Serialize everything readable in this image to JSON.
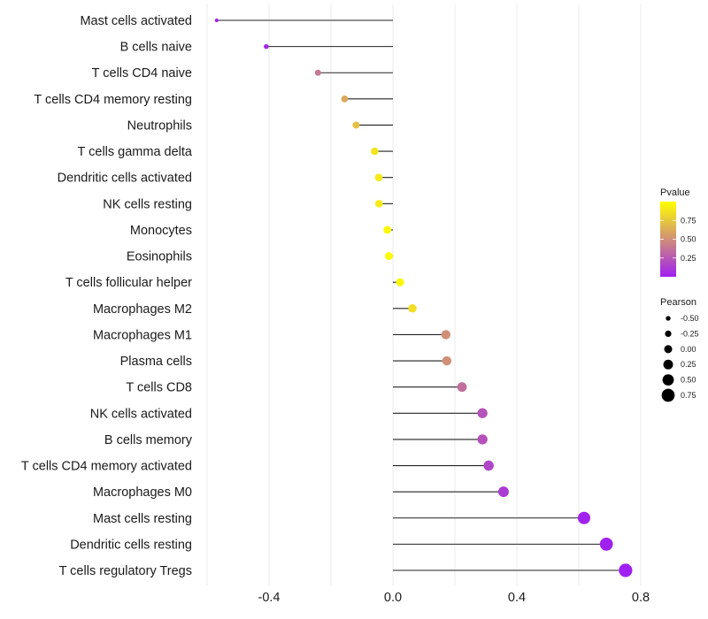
{
  "chart_data": {
    "type": "lollipop",
    "title": "",
    "xlabel": "",
    "ylabel": "",
    "xlim": [
      -0.6,
      0.8
    ],
    "x_ticks": [
      -0.4,
      0.0,
      0.4,
      0.8
    ],
    "x_tick_labels": [
      "-0.4",
      "0.0",
      "0.4",
      "0.8"
    ],
    "grid": true,
    "categories": [
      "Mast cells activated",
      "B cells naive",
      "T cells CD4 naive",
      "T cells CD4 memory resting",
      "Neutrophils",
      "T cells gamma delta",
      "Dendritic cells activated",
      "NK cells resting",
      "Monocytes",
      "Eosinophils",
      "T cells follicular helper",
      "Macrophages M2",
      "Macrophages M1",
      "Plasma cells",
      "T cells CD8",
      "NK cells activated",
      "B cells memory",
      "T cells CD4 memory activated",
      "Macrophages M0",
      "Mast cells resting",
      "Dendritic cells resting",
      "T cells regulatory  Tregs"
    ],
    "pearson": [
      -0.569,
      -0.409,
      -0.242,
      -0.156,
      -0.119,
      -0.059,
      -0.046,
      -0.045,
      -0.018,
      -0.013,
      0.023,
      0.063,
      0.171,
      0.174,
      0.223,
      0.289,
      0.289,
      0.309,
      0.357,
      0.617,
      0.689,
      0.751
    ],
    "pvalue": [
      0.01,
      0.04,
      0.4,
      0.62,
      0.72,
      0.88,
      0.9,
      0.9,
      0.97,
      0.98,
      0.96,
      0.85,
      0.5,
      0.5,
      0.35,
      0.22,
      0.22,
      0.17,
      0.12,
      0.01,
      0.005,
      0.0
    ],
    "legend": {
      "placement": "right",
      "color_title": "Pvalue",
      "color_ticks": [
        0.25,
        0.5,
        0.75
      ],
      "color_tick_labels": [
        "0.25",
        "0.50",
        "0.75"
      ],
      "color_low": "#a020f0",
      "color_high": "#ffff00",
      "size_title": "Pearson",
      "size_values": [
        -0.5,
        -0.25,
        0.0,
        0.25,
        0.5,
        0.75
      ],
      "size_labels": [
        "-0.50",
        "-0.25",
        "0.00",
        "0.25",
        "0.50",
        "0.75"
      ]
    }
  }
}
